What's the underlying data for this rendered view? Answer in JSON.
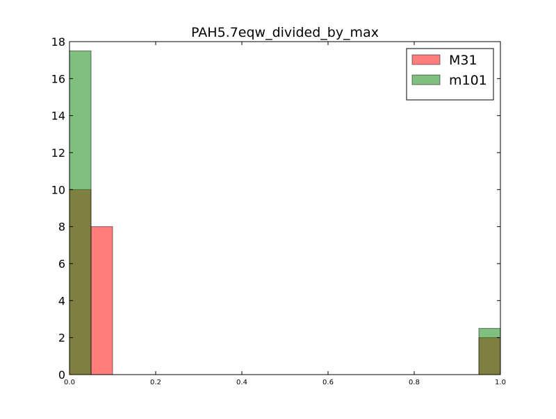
{
  "chart_data": {
    "type": "bar",
    "title": "PAH5.7eqw_divided_by_max",
    "xlabel": "",
    "ylabel": "",
    "xlim": [
      0.0,
      1.0
    ],
    "ylim": [
      0,
      18
    ],
    "xticks": [
      "0.0",
      "0.2",
      "0.4",
      "0.6",
      "0.8",
      "1.0"
    ],
    "yticks": [
      "0",
      "2",
      "4",
      "6",
      "8",
      "10",
      "12",
      "14",
      "16",
      "18"
    ],
    "grid": false,
    "legend_position": "top-right",
    "series": [
      {
        "name": "M31",
        "color": "#ff0000",
        "bins": [
          {
            "x0": 0.0,
            "x1": 0.05,
            "count": 10
          },
          {
            "x0": 0.05,
            "x1": 0.1,
            "count": 8
          },
          {
            "x0": 0.95,
            "x1": 1.0,
            "count": 2
          }
        ]
      },
      {
        "name": "m101",
        "color": "#008000",
        "bins": [
          {
            "x0": 0.0,
            "x1": 0.05,
            "count": 17.5
          },
          {
            "x0": 0.95,
            "x1": 1.0,
            "count": 2.5
          }
        ]
      }
    ]
  }
}
